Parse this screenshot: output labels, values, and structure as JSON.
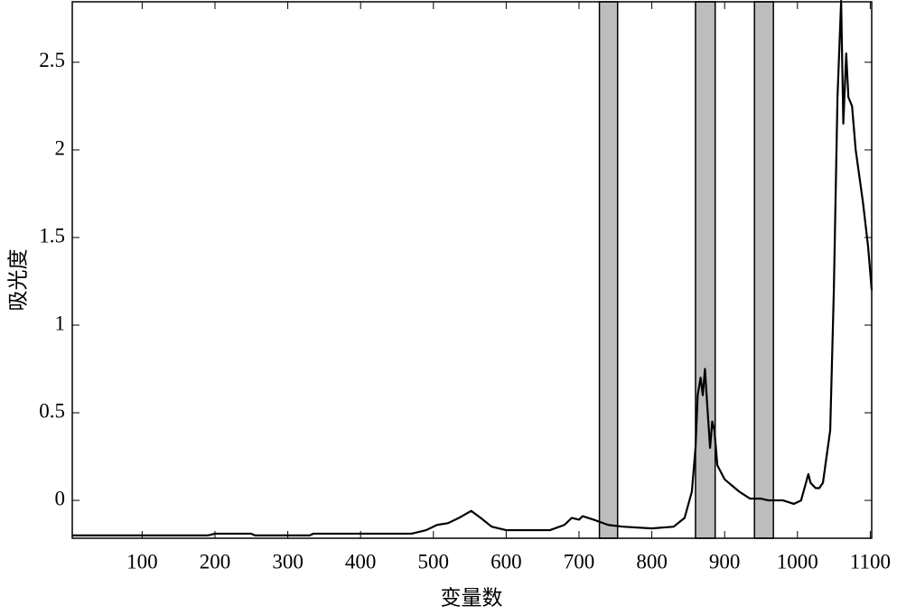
{
  "chart_data": {
    "type": "line",
    "xlabel": "变量数",
    "ylabel": "吸光度",
    "x": [
      4,
      190,
      200,
      250,
      255,
      330,
      335,
      470,
      490,
      505,
      520,
      535,
      552,
      565,
      580,
      600,
      660,
      680,
      690,
      700,
      705,
      720,
      740,
      760,
      800,
      830,
      845,
      855,
      860,
      863,
      867,
      870,
      873,
      876,
      880,
      883,
      886,
      890,
      900,
      920,
      935,
      950,
      960,
      980,
      995,
      1005,
      1015,
      1018,
      1025,
      1030,
      1035,
      1045,
      1050,
      1055,
      1060,
      1063,
      1067,
      1070,
      1075,
      1080,
      1090,
      1097,
      1102
    ],
    "series": [
      {
        "color": "#000000",
        "values": [
          -0.2,
          -0.2,
          -0.19,
          -0.19,
          -0.2,
          -0.2,
          -0.19,
          -0.19,
          -0.17,
          -0.14,
          -0.13,
          -0.1,
          -0.06,
          -0.1,
          -0.15,
          -0.17,
          -0.17,
          -0.14,
          -0.1,
          -0.11,
          -0.09,
          -0.11,
          -0.14,
          -0.15,
          -0.16,
          -0.15,
          -0.1,
          0.05,
          0.3,
          0.6,
          0.7,
          0.6,
          0.75,
          0.55,
          0.3,
          0.45,
          0.4,
          0.2,
          0.12,
          0.05,
          0.01,
          0.01,
          0.0,
          0.0,
          -0.02,
          0.0,
          0.15,
          0.1,
          0.07,
          0.07,
          0.1,
          0.4,
          1.2,
          2.3,
          2.85,
          2.15,
          2.55,
          2.3,
          2.25,
          2.0,
          1.7,
          1.45,
          1.2
        ]
      }
    ],
    "bands": [
      [
        728,
        753
      ],
      [
        860,
        887
      ],
      [
        941,
        967
      ]
    ],
    "band_color": "#bdbdbd",
    "xlim": [
      4,
      1102
    ],
    "ylim": [
      -0.216,
      2.845
    ],
    "xticks": [
      100,
      200,
      300,
      400,
      500,
      600,
      700,
      800,
      900,
      1000,
      1100
    ],
    "yticks": [
      0,
      0.5,
      1,
      1.5,
      2,
      2.5
    ]
  }
}
